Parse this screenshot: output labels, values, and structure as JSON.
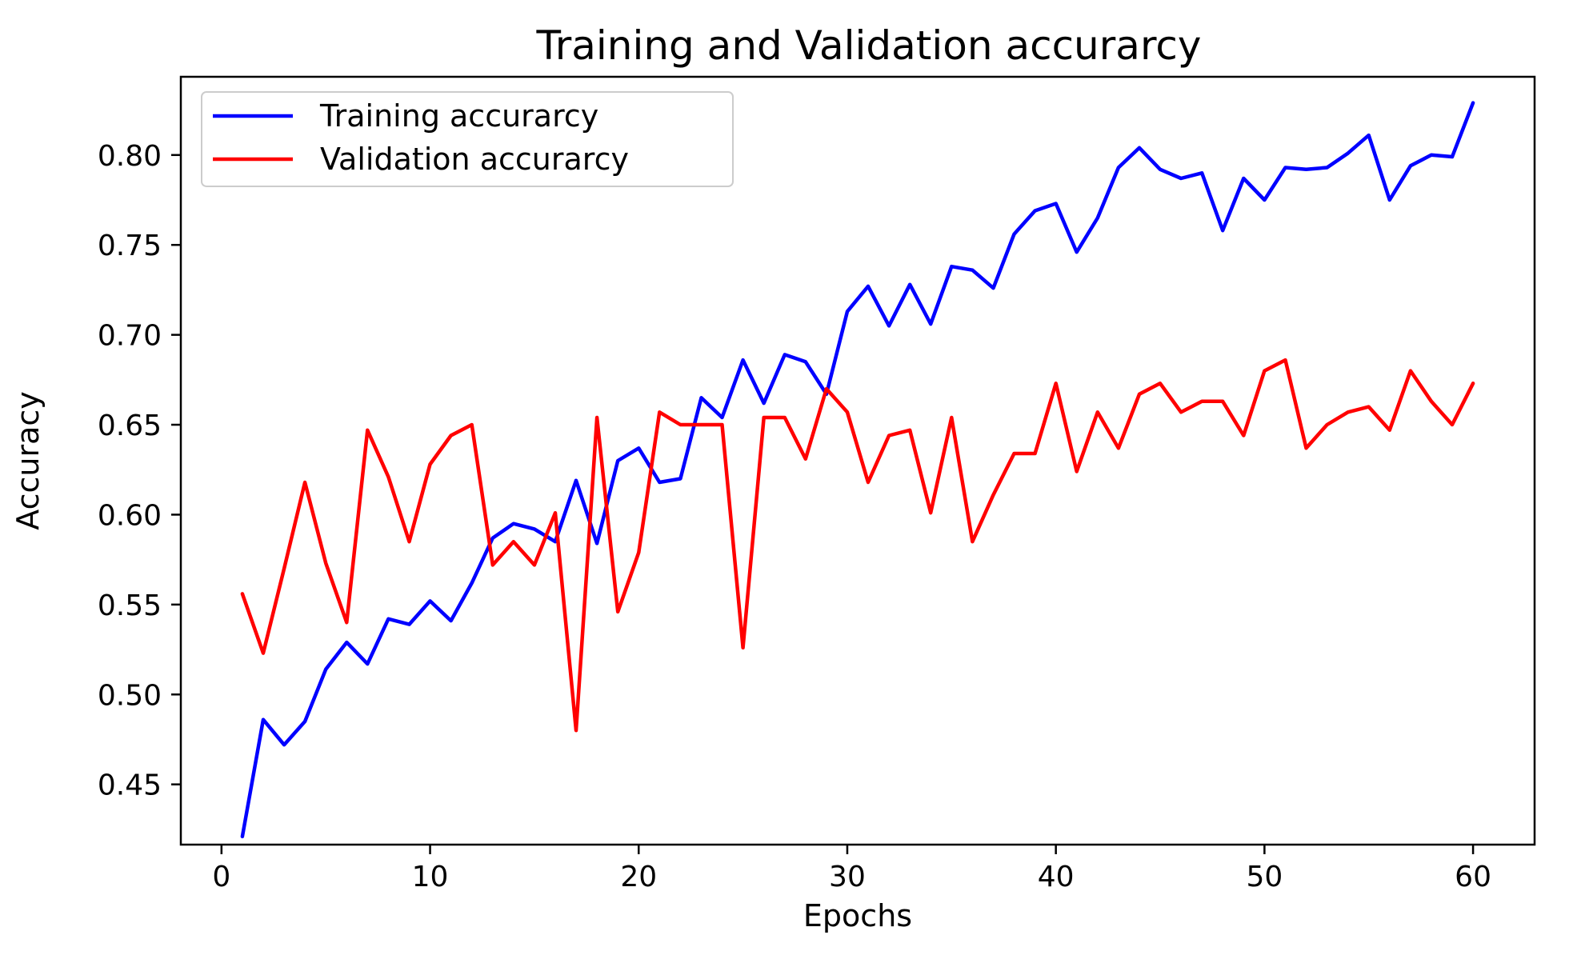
{
  "chart_data": {
    "type": "line",
    "title": "Training and Validation accurarcy",
    "xlabel": "Epochs",
    "ylabel": "Accuracy",
    "xlim": [
      -1.95,
      62.95
    ],
    "ylim": [
      0.4165,
      0.8435
    ],
    "xticks": [
      0,
      10,
      20,
      30,
      40,
      50,
      60
    ],
    "yticks": [
      0.45,
      0.5,
      0.55,
      0.6,
      0.65,
      0.7,
      0.75,
      0.8
    ],
    "grid": false,
    "legend_position": "top-left",
    "x": [
      1,
      2,
      3,
      4,
      5,
      6,
      7,
      8,
      9,
      10,
      11,
      12,
      13,
      14,
      15,
      16,
      17,
      18,
      19,
      20,
      21,
      22,
      23,
      24,
      25,
      26,
      27,
      28,
      29,
      30,
      31,
      32,
      33,
      34,
      35,
      36,
      37,
      38,
      39,
      40,
      41,
      42,
      43,
      44,
      45,
      46,
      47,
      48,
      49,
      50,
      51,
      52,
      53,
      54,
      55,
      56,
      57,
      58,
      59,
      60
    ],
    "series": [
      {
        "name": "Training accurarcy",
        "color": "#0000ff",
        "values": [
          0.421,
          0.486,
          0.472,
          0.485,
          0.514,
          0.529,
          0.517,
          0.542,
          0.539,
          0.552,
          0.541,
          0.562,
          0.587,
          0.595,
          0.592,
          0.585,
          0.619,
          0.584,
          0.63,
          0.637,
          0.618,
          0.62,
          0.665,
          0.654,
          0.686,
          0.662,
          0.689,
          0.685,
          0.667,
          0.713,
          0.727,
          0.705,
          0.728,
          0.706,
          0.738,
          0.736,
          0.726,
          0.756,
          0.769,
          0.773,
          0.746,
          0.765,
          0.793,
          0.804,
          0.792,
          0.787,
          0.79,
          0.758,
          0.787,
          0.775,
          0.793,
          0.792,
          0.793,
          0.801,
          0.811,
          0.775,
          0.794,
          0.8,
          0.799,
          0.829
        ]
      },
      {
        "name": "Validation accurarcy",
        "color": "#ff0000",
        "values": [
          0.556,
          0.523,
          0.57,
          0.618,
          0.573,
          0.54,
          0.647,
          0.621,
          0.585,
          0.628,
          0.644,
          0.65,
          0.572,
          0.585,
          0.572,
          0.601,
          0.48,
          0.654,
          0.546,
          0.579,
          0.657,
          0.65,
          0.65,
          0.65,
          0.526,
          0.654,
          0.654,
          0.631,
          0.67,
          0.657,
          0.618,
          0.644,
          0.647,
          0.601,
          0.654,
          0.585,
          0.611,
          0.634,
          0.634,
          0.673,
          0.624,
          0.657,
          0.637,
          0.667,
          0.673,
          0.657,
          0.663,
          0.663,
          0.644,
          0.68,
          0.686,
          0.637,
          0.65,
          0.657,
          0.66,
          0.647,
          0.68,
          0.663,
          0.65,
          0.673
        ]
      }
    ]
  }
}
